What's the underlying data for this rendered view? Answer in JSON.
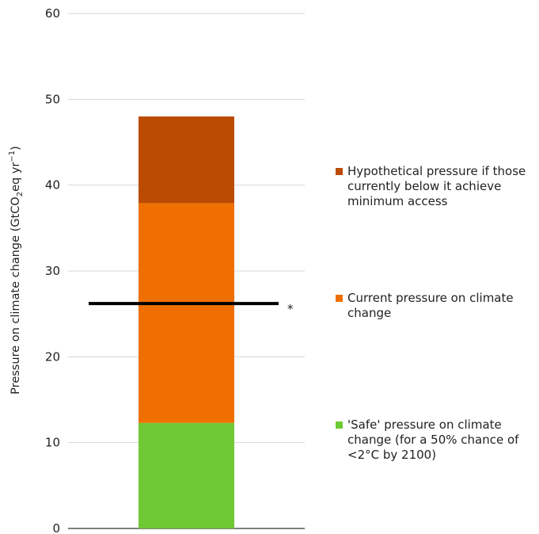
{
  "chart_data": {
    "type": "bar",
    "stacked": true,
    "categories": [
      ""
    ],
    "ylim": [
      0,
      60
    ],
    "yticks": [
      "0",
      "10",
      "20",
      "30",
      "40",
      "50",
      "60"
    ],
    "ylabel": {
      "text_before": "Pressure on climate change (GtCO",
      "sub": "2",
      "text_middle": "eq yr",
      "sup": "−1",
      "text_after": ")"
    },
    "grid": true,
    "series": [
      {
        "name": "'Safe' pressure on climate change (for a 50% chance of <2°C by 2100)",
        "values": [
          12.3
        ],
        "color": "#6ec935"
      },
      {
        "name": "Current pressure on climate change",
        "values": [
          25.6
        ],
        "color": "#ef7000"
      },
      {
        "name": "Hypothetical pressure if those currently below it achieve minimum access",
        "values": [
          10.1
        ],
        "color": "#bb4b00"
      }
    ],
    "reference_line": {
      "value": 26.2,
      "color": "#000000",
      "marker": "*"
    },
    "legend_position": "right"
  }
}
